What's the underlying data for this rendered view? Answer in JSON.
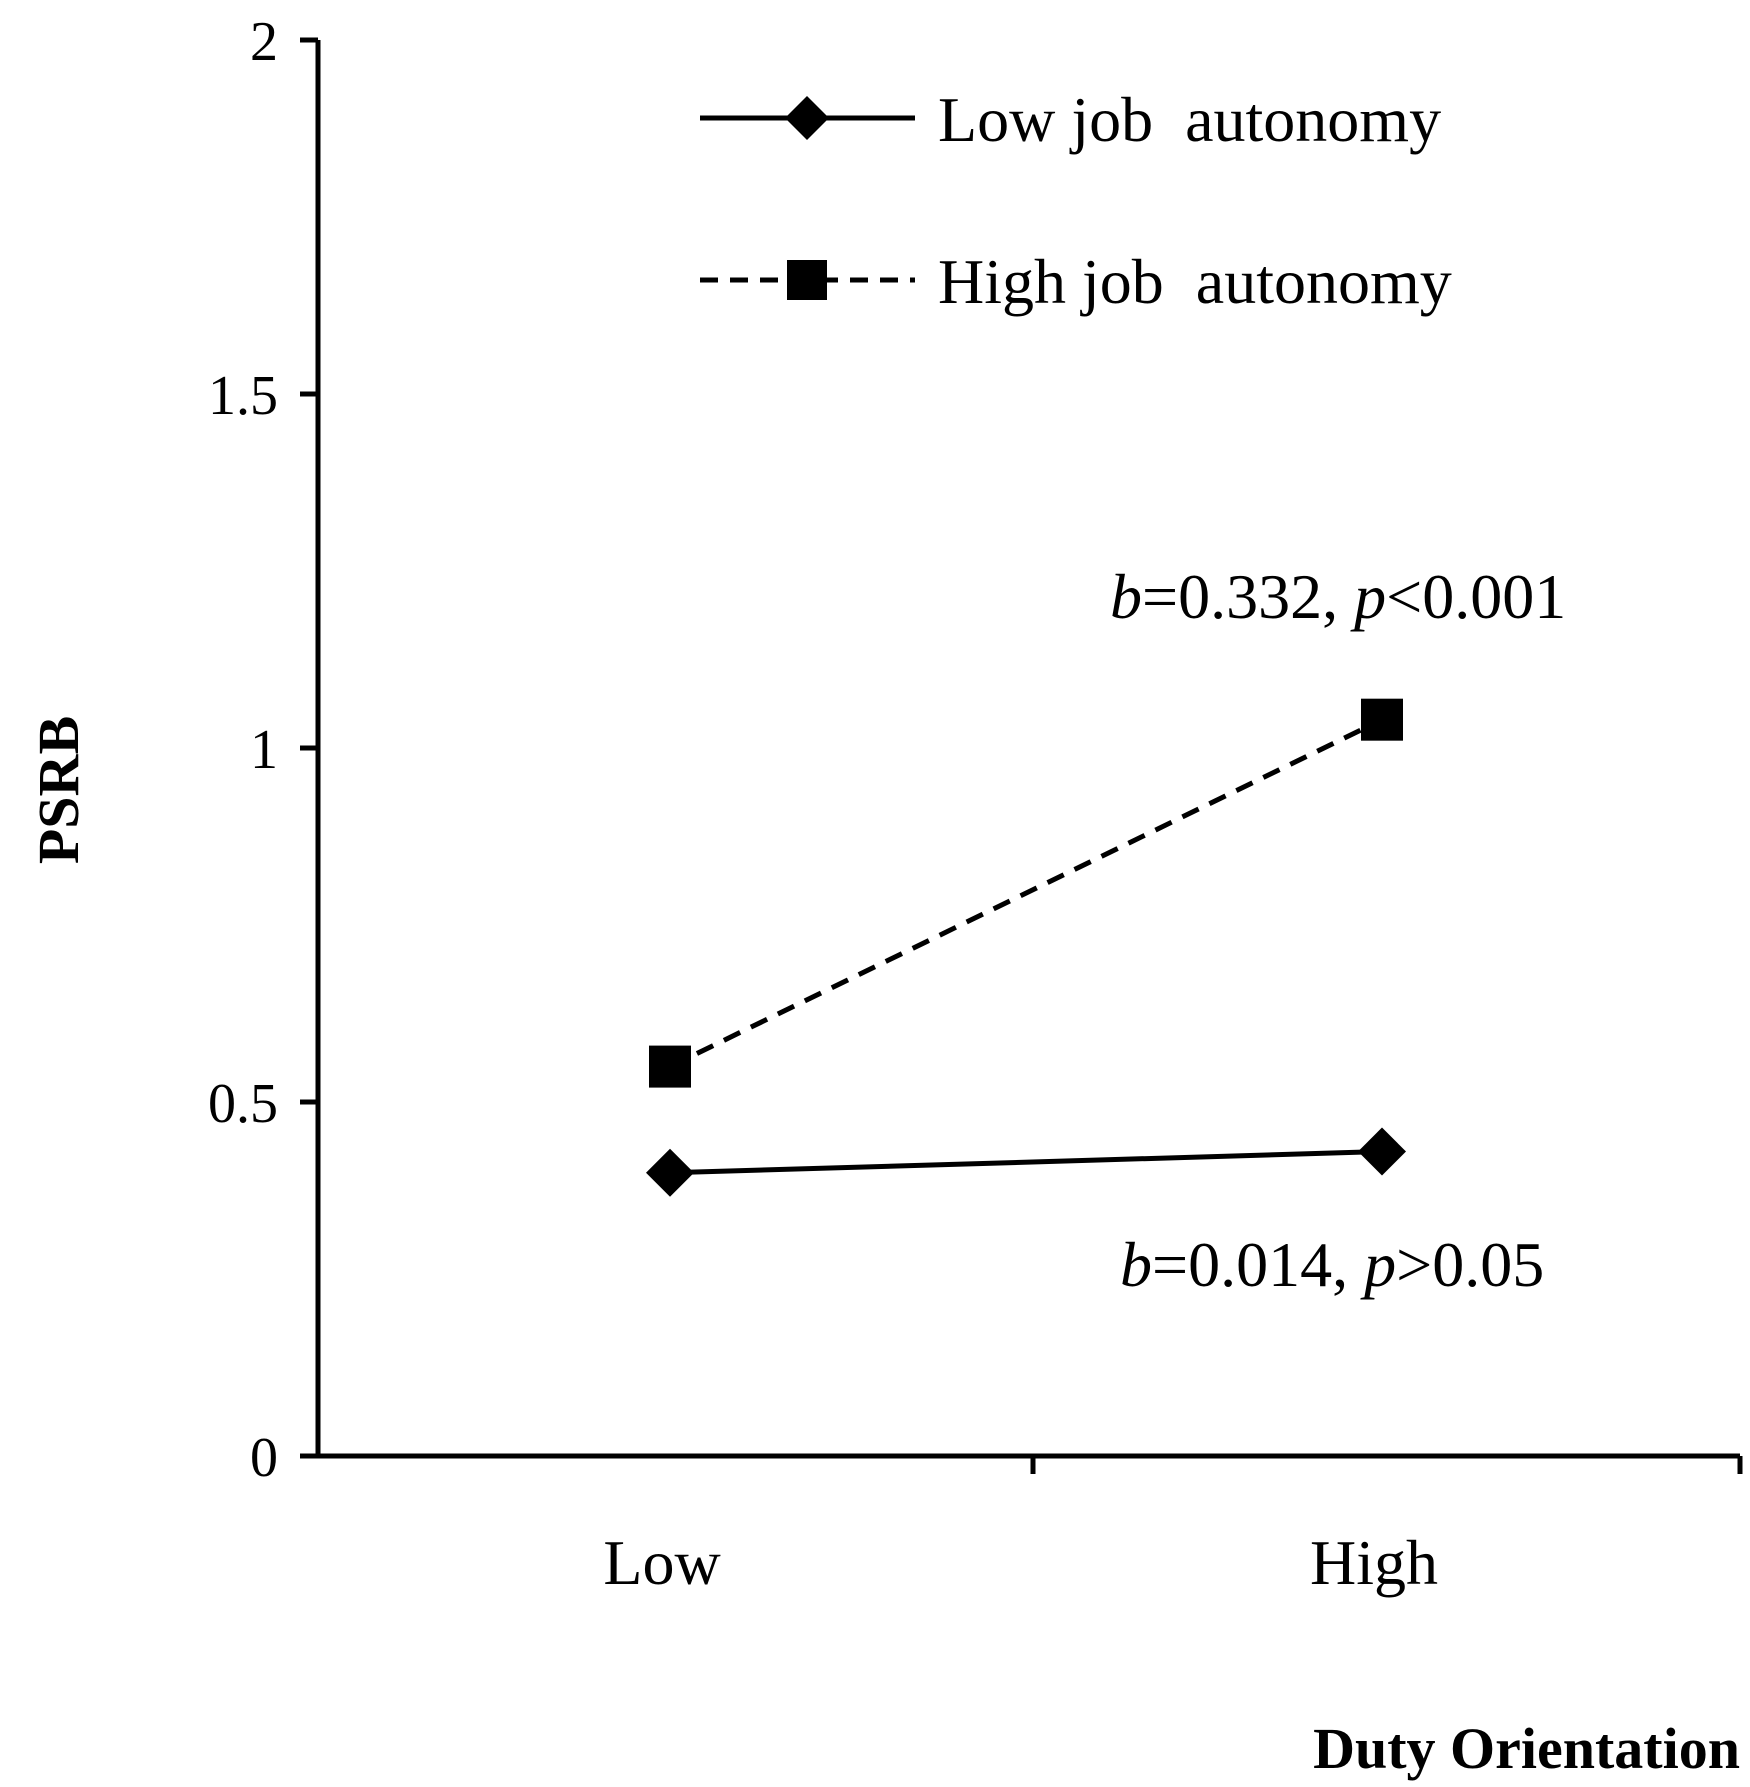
{
  "chart_data": {
    "type": "line",
    "xlabel": "Duty Orientation",
    "ylabel": "PSRB",
    "categories": [
      "Low",
      "High"
    ],
    "ylim": [
      0,
      2
    ],
    "yticks": [
      "0",
      "0.5",
      "1",
      "1.5",
      "2"
    ],
    "series": [
      {
        "name": "Low job  autonomy",
        "values": [
          0.4,
          0.43
        ],
        "marker": "diamond",
        "line": "solid",
        "color": "#000000"
      },
      {
        "name": "High job  autonomy",
        "values": [
          0.55,
          1.04
        ],
        "marker": "square",
        "line": "dashed",
        "color": "#000000"
      }
    ],
    "annotations": [
      {
        "b": "0.332",
        "p": "<0.001"
      },
      {
        "b": "0.014",
        "p": ">0.05"
      }
    ],
    "grid": false,
    "legend_position": "top-right"
  }
}
